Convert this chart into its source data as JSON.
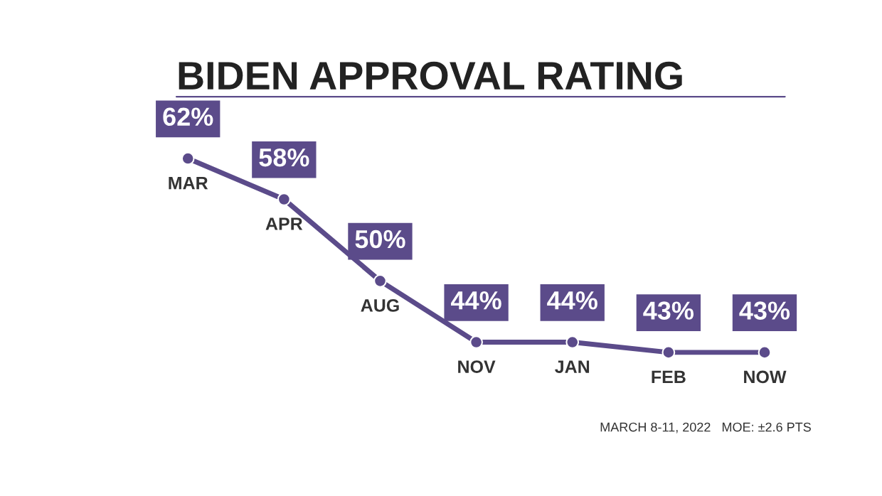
{
  "chart_data": {
    "type": "line",
    "title": "BIDEN APPROVAL RATING",
    "categories": [
      "MAR",
      "APR",
      "AUG",
      "NOV",
      "JAN",
      "FEB",
      "NOW"
    ],
    "series": [
      {
        "color": "#5b4b8a",
        "values": [
          62,
          58,
          50,
          44,
          44,
          43,
          43
        ],
        "value_labels": [
          "62%",
          "58%",
          "50%",
          "44%",
          "44%",
          "43%",
          "43%"
        ]
      }
    ],
    "marker": "circle",
    "line_style": "solid",
    "legend": false,
    "tick_labels": false,
    "annotations": [
      "MARCH 8-11, 2022",
      "MOE: ±2.6 PTS"
    ]
  }
}
